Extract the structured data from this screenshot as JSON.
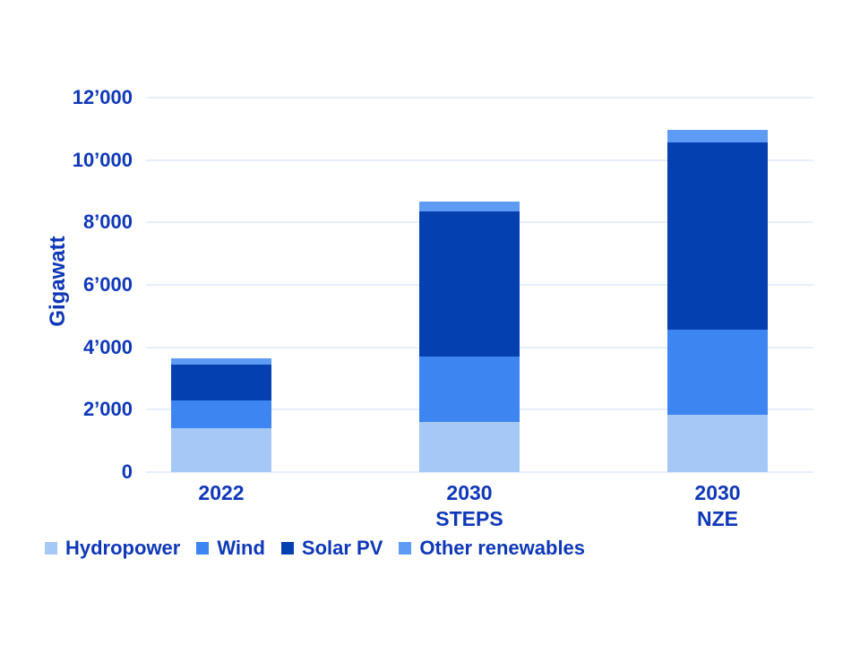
{
  "colors": {
    "text": "#0f38b8",
    "gridline": "#e6effb",
    "background": "#ffffff"
  },
  "chart_data": {
    "type": "bar",
    "stacked": true,
    "title": "",
    "xlabel": "",
    "ylabel": "Gigawatt",
    "unit": "GW",
    "grid": true,
    "legend_position": "bottom-left",
    "ylim": [
      0,
      12000
    ],
    "yticks": [
      0,
      2000,
      4000,
      6000,
      8000,
      10000,
      12000
    ],
    "ytick_labels": [
      "0",
      "2’000",
      "4’000",
      "6’000",
      "8’000",
      "10’000",
      "12’000"
    ],
    "categories": [
      "2022",
      "2030 STEPS",
      "2030 NZE"
    ],
    "category_label_lines": [
      [
        "2022"
      ],
      [
        "2030",
        "STEPS"
      ],
      [
        "2030",
        "NZE"
      ]
    ],
    "series": [
      {
        "name": "Hydropower",
        "color": "#a6c8f6",
        "values": [
          1400,
          1600,
          1840
        ]
      },
      {
        "name": "Wind",
        "color": "#3d85f0",
        "values": [
          900,
          2100,
          2730
        ]
      },
      {
        "name": "Solar PV",
        "color": "#0540b0",
        "values": [
          1150,
          4650,
          6000
        ]
      },
      {
        "name": "Other renewables",
        "color": "#5e9bf5",
        "values": [
          200,
          320,
          400
        ]
      }
    ],
    "totals": [
      3650,
      8670,
      10970
    ]
  }
}
